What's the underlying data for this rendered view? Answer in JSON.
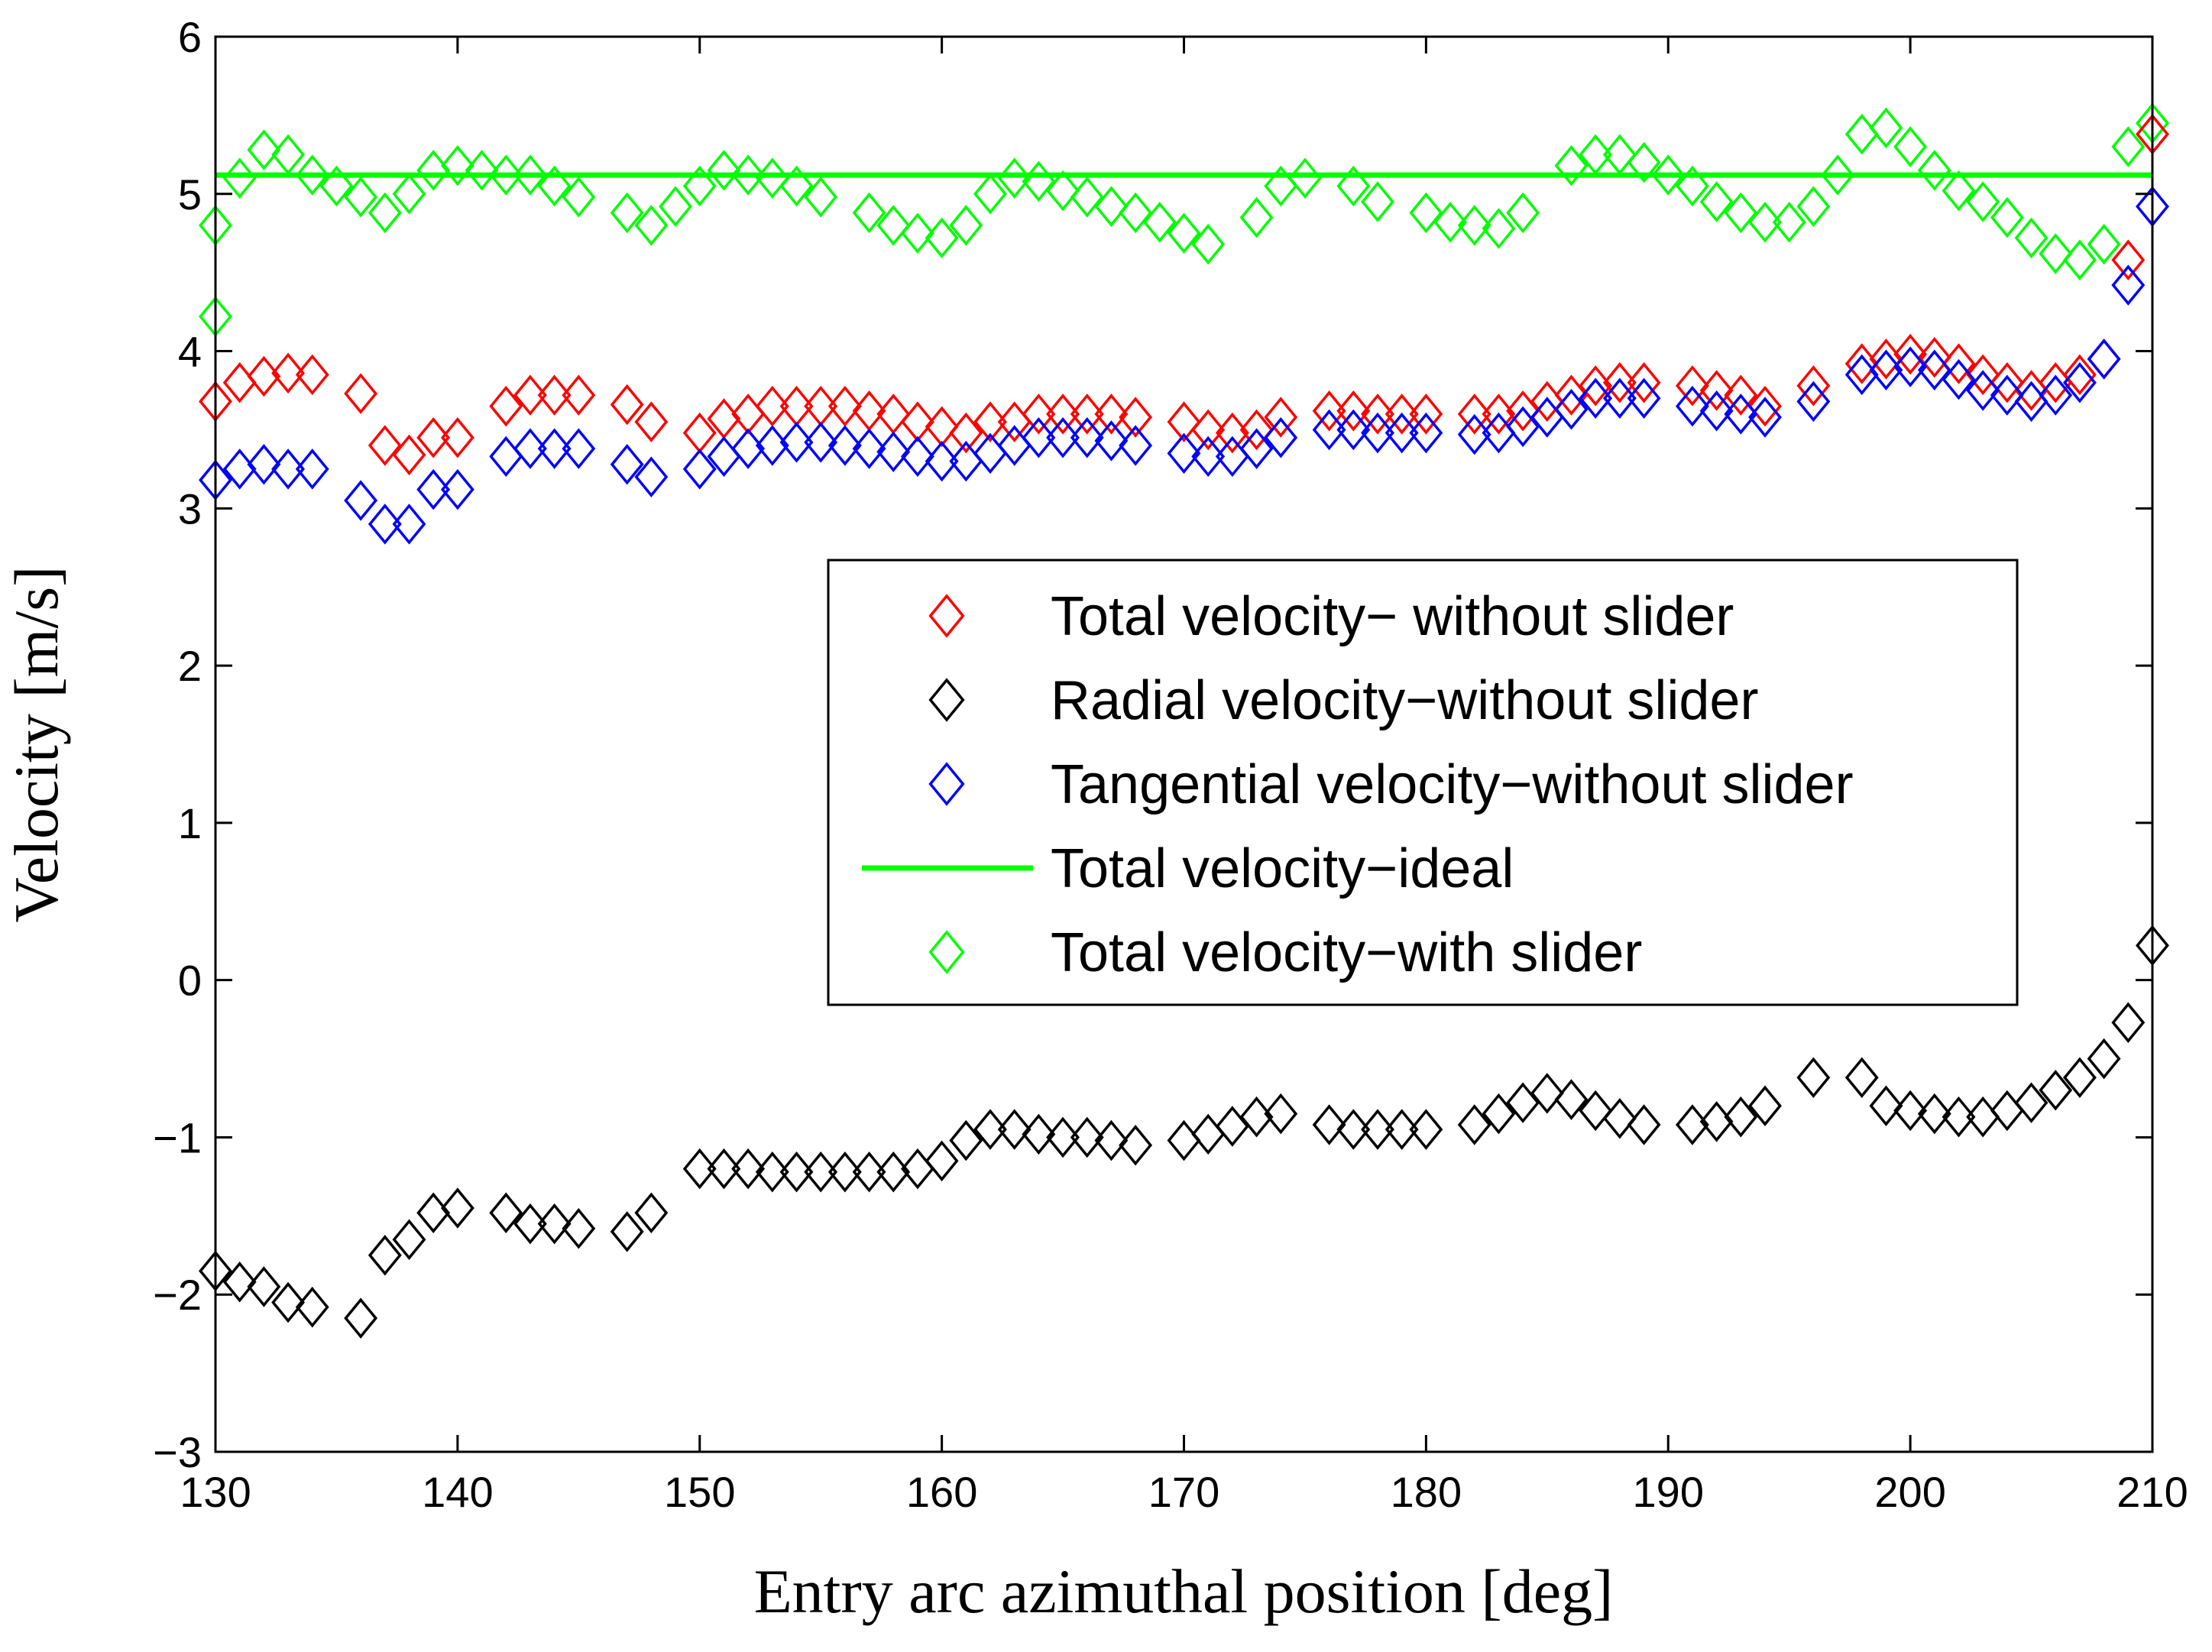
{
  "chart_data": {
    "type": "scatter",
    "title": "",
    "xlabel": "Entry arc azimuthal position [deg]",
    "ylabel": "Velocity [m/s]",
    "xlim": [
      130,
      210
    ],
    "ylim": [
      -3,
      6
    ],
    "xticks": [
      130,
      140,
      150,
      160,
      170,
      180,
      190,
      200,
      210
    ],
    "yticks": [
      -3,
      -2,
      -1,
      0,
      1,
      2,
      3,
      4,
      5,
      6
    ],
    "grid": false,
    "legend_position": "center-right",
    "series": [
      {
        "name": "Total velocity− without slider",
        "marker": "diamond",
        "color": "#ff0000",
        "x": [
          130,
          131,
          132,
          133,
          134,
          136,
          137,
          138,
          139,
          140,
          142,
          143,
          144,
          145,
          147,
          148,
          150,
          151,
          152,
          153,
          154,
          155,
          156,
          157,
          158,
          159,
          160,
          161,
          162,
          163,
          164,
          165,
          166,
          167,
          168,
          170,
          171,
          172,
          173,
          174,
          176,
          177,
          178,
          179,
          180,
          182,
          183,
          184,
          185,
          186,
          187,
          188,
          189,
          191,
          192,
          193,
          194,
          196,
          198,
          199,
          200,
          201,
          202,
          203,
          204,
          205,
          206,
          207,
          208,
          209,
          210
        ],
        "y": [
          3.68,
          3.8,
          3.84,
          3.86,
          3.85,
          3.73,
          3.4,
          3.34,
          3.45,
          3.45,
          3.65,
          3.72,
          3.72,
          3.72,
          3.66,
          3.55,
          3.48,
          3.57,
          3.6,
          3.65,
          3.65,
          3.65,
          3.65,
          3.62,
          3.6,
          3.55,
          3.52,
          3.48,
          3.55,
          3.55,
          3.6,
          3.6,
          3.6,
          3.6,
          3.58,
          3.55,
          3.5,
          3.48,
          3.5,
          3.58,
          3.62,
          3.62,
          3.6,
          3.6,
          3.6,
          3.6,
          3.6,
          3.62,
          3.68,
          3.72,
          3.78,
          3.8,
          3.8,
          3.78,
          3.75,
          3.72,
          3.65,
          3.78,
          3.92,
          3.95,
          3.98,
          3.96,
          3.92,
          3.85,
          3.8,
          3.75,
          3.8,
          3.85,
          3.95,
          4.58,
          5.38
        ]
      },
      {
        "name": "Radial velocity−without slider",
        "marker": "diamond",
        "color": "#000000",
        "x": [
          130,
          131,
          132,
          133,
          134,
          136,
          137,
          138,
          139,
          140,
          142,
          143,
          144,
          145,
          147,
          148,
          150,
          151,
          152,
          153,
          154,
          155,
          156,
          157,
          158,
          159,
          160,
          161,
          162,
          163,
          164,
          165,
          166,
          167,
          168,
          170,
          171,
          172,
          173,
          174,
          176,
          177,
          178,
          179,
          180,
          182,
          183,
          184,
          185,
          186,
          187,
          188,
          189,
          191,
          192,
          193,
          194,
          196,
          198,
          199,
          200,
          201,
          202,
          203,
          204,
          205,
          206,
          207,
          208,
          209,
          210
        ],
        "y": [
          -1.85,
          -1.92,
          -1.95,
          -2.05,
          -2.08,
          -2.15,
          -1.75,
          -1.65,
          -1.48,
          -1.45,
          -1.48,
          -1.55,
          -1.55,
          -1.58,
          -1.6,
          -1.48,
          -1.2,
          -1.2,
          -1.2,
          -1.22,
          -1.22,
          -1.22,
          -1.22,
          -1.22,
          -1.22,
          -1.2,
          -1.15,
          -1.02,
          -0.95,
          -0.95,
          -0.98,
          -1.0,
          -1.0,
          -1.02,
          -1.05,
          -1.02,
          -0.98,
          -0.93,
          -0.87,
          -0.85,
          -0.92,
          -0.95,
          -0.95,
          -0.95,
          -0.95,
          -0.92,
          -0.85,
          -0.78,
          -0.72,
          -0.76,
          -0.83,
          -0.88,
          -0.92,
          -0.92,
          -0.9,
          -0.87,
          -0.8,
          -0.62,
          -0.62,
          -0.8,
          -0.83,
          -0.85,
          -0.87,
          -0.87,
          -0.83,
          -0.78,
          -0.7,
          -0.62,
          -0.5,
          -0.27,
          0.22
        ]
      },
      {
        "name": "Tangential velocity−without slider",
        "marker": "diamond",
        "color": "#0000ff",
        "x": [
          130,
          131,
          132,
          133,
          134,
          136,
          137,
          138,
          139,
          140,
          142,
          143,
          144,
          145,
          147,
          148,
          150,
          151,
          152,
          153,
          154,
          155,
          156,
          157,
          158,
          159,
          160,
          161,
          162,
          163,
          164,
          165,
          166,
          167,
          168,
          170,
          171,
          172,
          173,
          174,
          176,
          177,
          178,
          179,
          180,
          182,
          183,
          184,
          185,
          186,
          187,
          188,
          189,
          191,
          192,
          193,
          194,
          196,
          198,
          199,
          200,
          201,
          202,
          203,
          204,
          205,
          206,
          207,
          208,
          209,
          210
        ],
        "y": [
          3.18,
          3.25,
          3.28,
          3.25,
          3.25,
          3.05,
          2.9,
          2.9,
          3.12,
          3.12,
          3.33,
          3.38,
          3.38,
          3.38,
          3.28,
          3.2,
          3.25,
          3.33,
          3.38,
          3.4,
          3.42,
          3.42,
          3.4,
          3.38,
          3.36,
          3.33,
          3.3,
          3.3,
          3.35,
          3.4,
          3.45,
          3.45,
          3.45,
          3.43,
          3.4,
          3.35,
          3.33,
          3.33,
          3.38,
          3.45,
          3.5,
          3.5,
          3.48,
          3.48,
          3.48,
          3.47,
          3.48,
          3.52,
          3.58,
          3.63,
          3.7,
          3.7,
          3.7,
          3.65,
          3.62,
          3.6,
          3.58,
          3.68,
          3.85,
          3.88,
          3.9,
          3.88,
          3.82,
          3.75,
          3.72,
          3.68,
          3.72,
          3.8,
          3.95,
          4.42,
          4.92
        ]
      },
      {
        "name": "Total velocity−ideal",
        "marker": "line",
        "color": "#00ff00",
        "x": [
          130,
          210
        ],
        "y": [
          5.12,
          5.12
        ]
      },
      {
        "name": "Total velocity−with slider",
        "marker": "diamond",
        "color": "#00ff00",
        "x": [
          130,
          130,
          131,
          132,
          133,
          134,
          135,
          136,
          137,
          138,
          139,
          140,
          141,
          142,
          143,
          144,
          145,
          147,
          148,
          149,
          150,
          151,
          152,
          153,
          154,
          155,
          157,
          158,
          159,
          160,
          161,
          162,
          163,
          164,
          165,
          166,
          167,
          168,
          169,
          170,
          171,
          173,
          174,
          175,
          177,
          178,
          180,
          181,
          182,
          183,
          184,
          186,
          187,
          188,
          189,
          190,
          191,
          192,
          193,
          194,
          195,
          196,
          197,
          198,
          199,
          200,
          201,
          202,
          203,
          204,
          205,
          206,
          207,
          208,
          209,
          210
        ],
        "y": [
          4.22,
          4.8,
          5.1,
          5.28,
          5.25,
          5.12,
          5.05,
          4.98,
          4.88,
          5.0,
          5.15,
          5.18,
          5.15,
          5.12,
          5.12,
          5.05,
          4.98,
          4.88,
          4.8,
          4.92,
          5.05,
          5.15,
          5.12,
          5.1,
          5.05,
          4.98,
          4.88,
          4.8,
          4.75,
          4.72,
          4.8,
          5.0,
          5.1,
          5.08,
          5.02,
          4.98,
          4.92,
          4.88,
          4.82,
          4.75,
          4.68,
          4.85,
          5.05,
          5.1,
          5.05,
          4.95,
          4.88,
          4.82,
          4.8,
          4.78,
          4.88,
          5.18,
          5.25,
          5.25,
          5.2,
          5.12,
          5.05,
          4.95,
          4.88,
          4.82,
          4.82,
          4.92,
          5.12,
          5.38,
          5.42,
          5.3,
          5.15,
          5.02,
          4.95,
          4.85,
          4.72,
          4.62,
          4.58,
          4.68,
          5.3,
          5.45
        ]
      }
    ]
  }
}
